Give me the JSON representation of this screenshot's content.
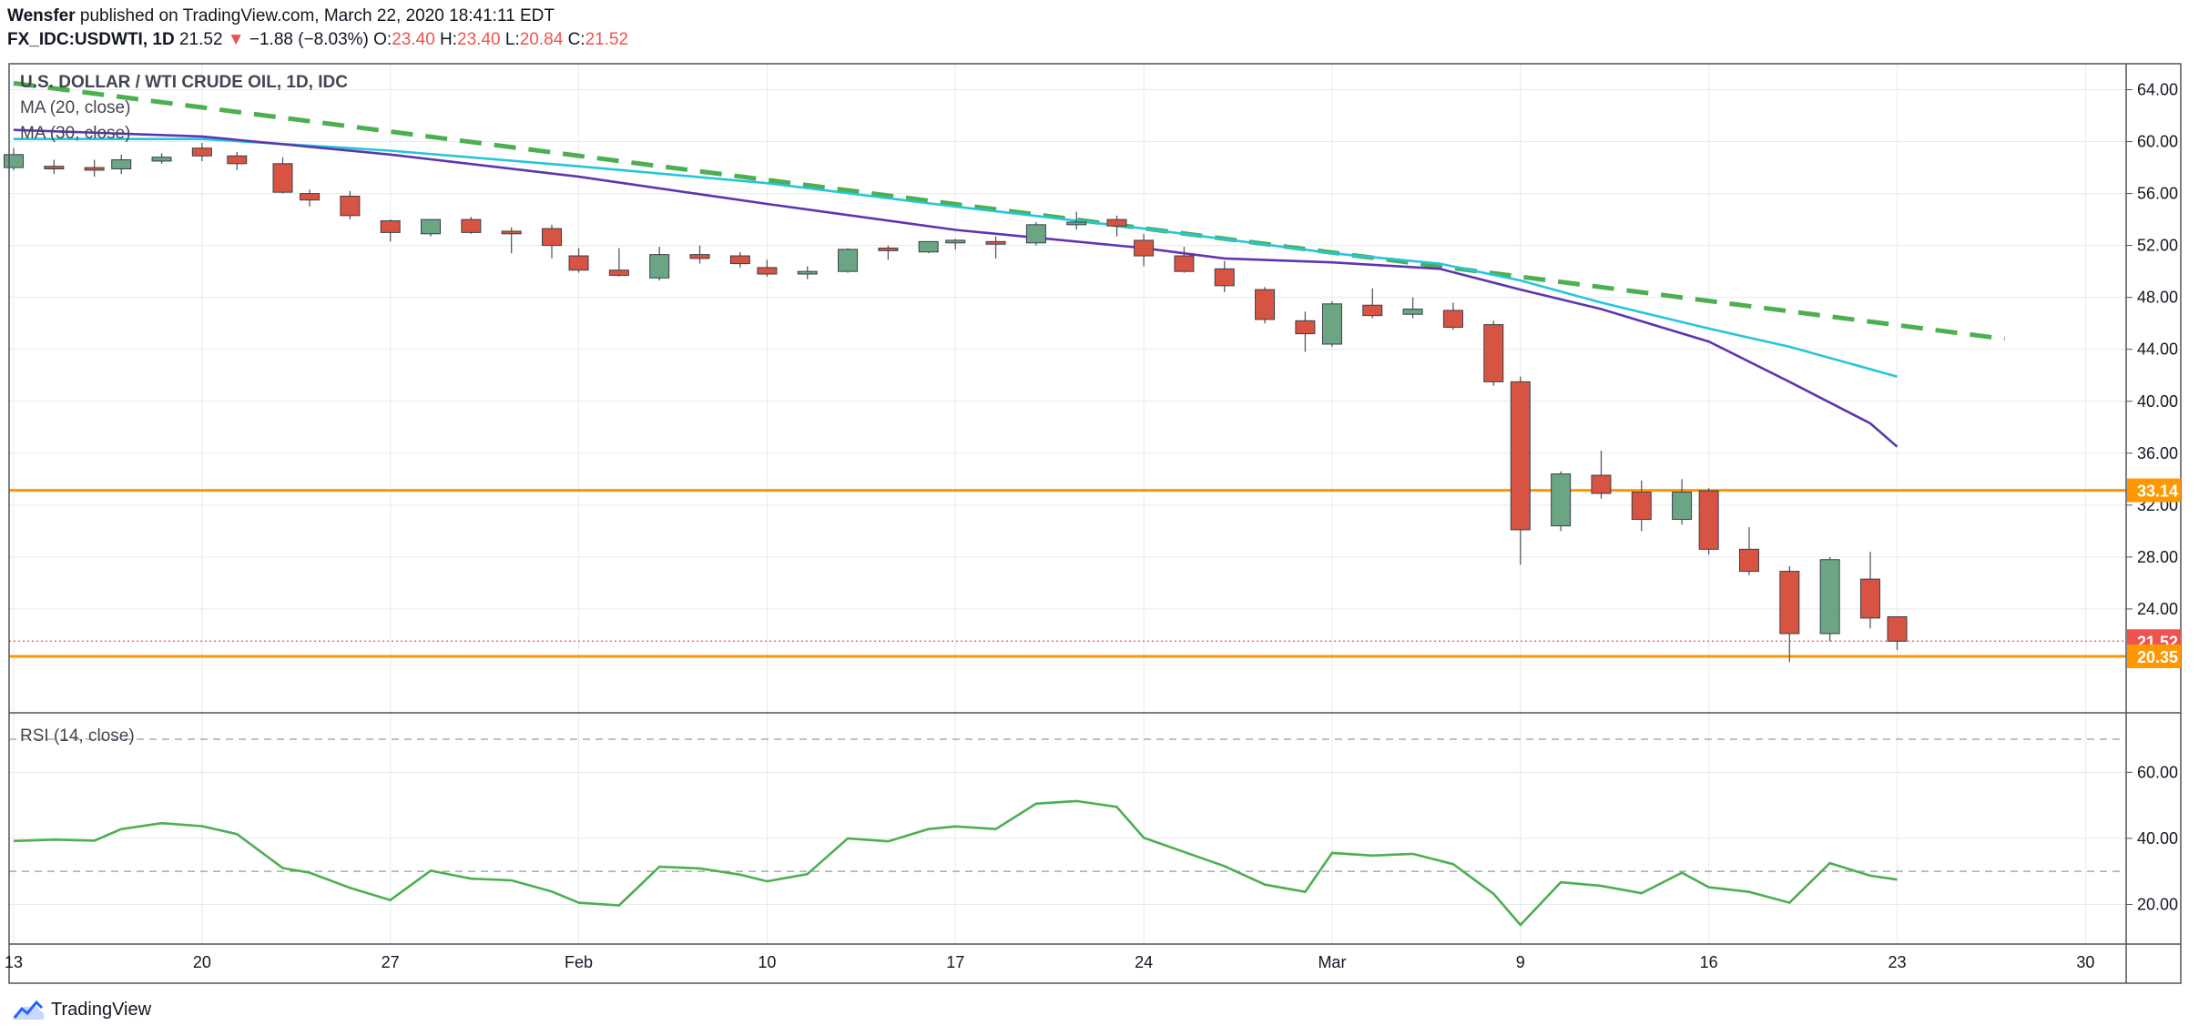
{
  "header": {
    "author": "Wensfer",
    "published": "published on TradingView.com, March 22, 2020 18:41:11 EDT",
    "symbol": "FX_IDC:USDWTI, 1D",
    "last": "21.52",
    "change": "−1.88 (−8.03%)",
    "o_label": "O:",
    "o_value": "23.40",
    "h_label": "H:",
    "h_value": "23.40",
    "l_label": "L:",
    "l_value": "20.84",
    "c_label": "C:",
    "c_value": "21.52"
  },
  "legend": {
    "title": "U.S. DOLLAR / WTI CRUDE OIL, 1D, IDC",
    "ma20": "MA (20, close)",
    "ma30": "MA (30, close)",
    "rsi": "RSI (14, close)"
  },
  "brand": {
    "name": "TradingView"
  },
  "colors": {
    "up": "#6ba583",
    "down": "#d75442",
    "ma20": "#5e35b1",
    "ma30": "#26c6da",
    "trend": "#4caf50",
    "rsi": "#4caf50",
    "level": "#ff9800",
    "last": "#ef5350"
  },
  "chart_data": [
    {
      "type": "candlestick",
      "title": "U.S. DOLLAR / WTI CRUDE OIL, 1D, IDC",
      "ylim": [
        16,
        66
      ],
      "yticks": [
        "64.00",
        "60.00",
        "56.00",
        "52.00",
        "48.00",
        "44.00",
        "40.00",
        "36.00",
        "32.00",
        "28.00",
        "24.00"
      ],
      "xticks": [
        {
          "day": 0,
          "label": "13"
        },
        {
          "day": 7,
          "label": "20"
        },
        {
          "day": 14,
          "label": "27"
        },
        {
          "day": 21,
          "label": "Feb"
        },
        {
          "day": 28,
          "label": "10"
        },
        {
          "day": 35,
          "label": "17"
        },
        {
          "day": 42,
          "label": "24"
        },
        {
          "day": 49,
          "label": "Mar"
        },
        {
          "day": 56,
          "label": "9"
        },
        {
          "day": 63,
          "label": "16"
        },
        {
          "day": 70,
          "label": "23"
        },
        {
          "day": 77,
          "label": "30"
        }
      ],
      "candles": [
        {
          "day": 0,
          "o": 58.0,
          "h": 59.5,
          "l": 57.8,
          "c": 59.0
        },
        {
          "day": 1.5,
          "o": 58.1,
          "h": 58.6,
          "l": 57.5,
          "c": 57.9
        },
        {
          "day": 3,
          "o": 58.0,
          "h": 58.6,
          "l": 57.3,
          "c": 57.8
        },
        {
          "day": 4,
          "o": 57.9,
          "h": 59.0,
          "l": 57.5,
          "c": 58.6
        },
        {
          "day": 5.5,
          "o": 58.5,
          "h": 59.1,
          "l": 58.3,
          "c": 58.8
        },
        {
          "day": 7,
          "o": 59.5,
          "h": 59.9,
          "l": 58.5,
          "c": 58.9
        },
        {
          "day": 8.3,
          "o": 58.9,
          "h": 59.2,
          "l": 57.8,
          "c": 58.3
        },
        {
          "day": 10,
          "o": 58.3,
          "h": 58.8,
          "l": 56.0,
          "c": 56.1
        },
        {
          "day": 11,
          "o": 56.0,
          "h": 56.3,
          "l": 55.0,
          "c": 55.5
        },
        {
          "day": 12.5,
          "o": 55.8,
          "h": 56.2,
          "l": 54.0,
          "c": 54.3
        },
        {
          "day": 14,
          "o": 53.9,
          "h": 54.0,
          "l": 52.3,
          "c": 53.0
        },
        {
          "day": 15.5,
          "o": 52.9,
          "h": 54.0,
          "l": 52.7,
          "c": 54.0
        },
        {
          "day": 17,
          "o": 54.0,
          "h": 54.2,
          "l": 52.9,
          "c": 53.0
        },
        {
          "day": 18.5,
          "o": 53.1,
          "h": 53.4,
          "l": 51.4,
          "c": 52.9
        },
        {
          "day": 20,
          "o": 53.3,
          "h": 53.6,
          "l": 51.0,
          "c": 52.0
        },
        {
          "day": 21,
          "o": 51.2,
          "h": 51.8,
          "l": 49.9,
          "c": 50.1
        },
        {
          "day": 22.5,
          "o": 50.1,
          "h": 51.8,
          "l": 49.6,
          "c": 49.7
        },
        {
          "day": 24,
          "o": 49.5,
          "h": 51.9,
          "l": 49.3,
          "c": 51.3
        },
        {
          "day": 25.5,
          "o": 51.3,
          "h": 52.0,
          "l": 50.6,
          "c": 51.0
        },
        {
          "day": 27,
          "o": 51.2,
          "h": 51.5,
          "l": 50.3,
          "c": 50.6
        },
        {
          "day": 28,
          "o": 50.3,
          "h": 50.9,
          "l": 49.6,
          "c": 49.8
        },
        {
          "day": 29.5,
          "o": 49.8,
          "h": 50.4,
          "l": 49.4,
          "c": 50.0
        },
        {
          "day": 31,
          "o": 50.0,
          "h": 51.8,
          "l": 49.9,
          "c": 51.7
        },
        {
          "day": 32.5,
          "o": 51.8,
          "h": 52.0,
          "l": 50.9,
          "c": 51.6
        },
        {
          "day": 34,
          "o": 51.5,
          "h": 52.3,
          "l": 51.4,
          "c": 52.3
        },
        {
          "day": 35,
          "o": 52.2,
          "h": 52.5,
          "l": 51.7,
          "c": 52.4
        },
        {
          "day": 36.5,
          "o": 52.3,
          "h": 52.7,
          "l": 51.0,
          "c": 52.1
        },
        {
          "day": 38,
          "o": 52.2,
          "h": 53.8,
          "l": 52.0,
          "c": 53.6
        },
        {
          "day": 39.5,
          "o": 53.6,
          "h": 54.6,
          "l": 53.2,
          "c": 53.8
        },
        {
          "day": 41,
          "o": 54.0,
          "h": 54.3,
          "l": 52.7,
          "c": 53.5
        },
        {
          "day": 42,
          "o": 52.4,
          "h": 52.9,
          "l": 50.4,
          "c": 51.2
        },
        {
          "day": 43.5,
          "o": 51.2,
          "h": 51.9,
          "l": 49.9,
          "c": 50.0
        },
        {
          "day": 45,
          "o": 50.2,
          "h": 50.8,
          "l": 48.4,
          "c": 48.9
        },
        {
          "day": 46.5,
          "o": 48.6,
          "h": 48.8,
          "l": 46.0,
          "c": 46.3
        },
        {
          "day": 48,
          "o": 46.2,
          "h": 46.9,
          "l": 43.8,
          "c": 45.2
        },
        {
          "day": 49,
          "o": 44.4,
          "h": 47.7,
          "l": 44.2,
          "c": 47.5
        },
        {
          "day": 50.5,
          "o": 47.4,
          "h": 48.7,
          "l": 46.4,
          "c": 46.6
        },
        {
          "day": 52,
          "o": 46.7,
          "h": 48.0,
          "l": 46.4,
          "c": 47.1
        },
        {
          "day": 53.5,
          "o": 47.0,
          "h": 47.6,
          "l": 45.5,
          "c": 45.7
        },
        {
          "day": 55,
          "o": 45.9,
          "h": 46.2,
          "l": 41.2,
          "c": 41.5
        },
        {
          "day": 56,
          "o": 41.5,
          "h": 41.9,
          "l": 27.4,
          "c": 30.1
        },
        {
          "day": 57.5,
          "o": 30.4,
          "h": 34.6,
          "l": 30.0,
          "c": 34.4
        },
        {
          "day": 59,
          "o": 34.3,
          "h": 36.2,
          "l": 32.5,
          "c": 32.9
        },
        {
          "day": 60.5,
          "o": 33.0,
          "h": 33.9,
          "l": 30.0,
          "c": 30.9
        },
        {
          "day": 62,
          "o": 30.9,
          "h": 34.0,
          "l": 30.5,
          "c": 33.0
        },
        {
          "day": 63,
          "o": 33.1,
          "h": 33.3,
          "l": 28.2,
          "c": 28.6
        },
        {
          "day": 64.5,
          "o": 28.6,
          "h": 30.3,
          "l": 26.6,
          "c": 26.9
        },
        {
          "day": 66,
          "o": 26.9,
          "h": 27.3,
          "l": 19.9,
          "c": 22.1
        },
        {
          "day": 67.5,
          "o": 22.1,
          "h": 28.0,
          "l": 21.5,
          "c": 27.8
        },
        {
          "day": 69,
          "o": 26.3,
          "h": 28.4,
          "l": 22.5,
          "c": 23.3
        },
        {
          "day": 70,
          "o": 23.4,
          "h": 23.4,
          "l": 20.84,
          "c": 21.52
        }
      ],
      "ma20": [
        [
          0,
          60.9
        ],
        [
          7,
          60.4
        ],
        [
          14,
          59.0
        ],
        [
          21,
          57.3
        ],
        [
          28,
          55.2
        ],
        [
          35,
          53.2
        ],
        [
          42,
          51.8
        ],
        [
          45,
          51.0
        ],
        [
          49,
          50.7
        ],
        [
          53,
          50.2
        ],
        [
          56,
          48.6
        ],
        [
          59,
          47.1
        ],
        [
          63,
          44.6
        ],
        [
          66,
          41.5
        ],
        [
          69,
          38.3
        ],
        [
          70,
          36.5
        ]
      ],
      "ma30": [
        [
          0,
          60.2
        ],
        [
          7,
          60.2
        ],
        [
          14,
          59.3
        ],
        [
          21,
          58.1
        ],
        [
          28,
          56.8
        ],
        [
          35,
          55.0
        ],
        [
          42,
          53.3
        ],
        [
          49,
          51.4
        ],
        [
          53,
          50.6
        ],
        [
          56,
          49.3
        ],
        [
          59,
          47.6
        ],
        [
          63,
          45.6
        ],
        [
          66,
          44.2
        ],
        [
          70,
          41.9
        ]
      ],
      "trendline": [
        [
          0,
          64.5
        ],
        [
          74,
          44.8
        ]
      ],
      "levels": [
        {
          "value": 33.14,
          "label": "33.14"
        },
        {
          "value": 20.35,
          "label": "20.35"
        }
      ],
      "last_price": {
        "value": 21.52,
        "label": "21.52"
      }
    },
    {
      "type": "line",
      "title": "RSI (14, close)",
      "ylim": [
        8,
        78
      ],
      "yticks": [
        "60.00",
        "40.00",
        "20.00"
      ],
      "bands": [
        70,
        30
      ],
      "values": [
        [
          0,
          39.2
        ],
        [
          1.5,
          39.6
        ],
        [
          3,
          39.3
        ],
        [
          4,
          42.8
        ],
        [
          5.5,
          44.6
        ],
        [
          7,
          43.7
        ],
        [
          8.3,
          41.3
        ],
        [
          10,
          31.0
        ],
        [
          11,
          29.6
        ],
        [
          12.5,
          25.0
        ],
        [
          14,
          21.3
        ],
        [
          15.5,
          30.2
        ],
        [
          17,
          27.8
        ],
        [
          18.5,
          27.3
        ],
        [
          20,
          23.9
        ],
        [
          21,
          20.5
        ],
        [
          22.5,
          19.7
        ],
        [
          24,
          31.4
        ],
        [
          25.5,
          30.9
        ],
        [
          27,
          29.0
        ],
        [
          28,
          27.0
        ],
        [
          29.5,
          29.2
        ],
        [
          31,
          40.0
        ],
        [
          32.5,
          39.1
        ],
        [
          34,
          42.8
        ],
        [
          35,
          43.6
        ],
        [
          36.5,
          42.8
        ],
        [
          38,
          50.5
        ],
        [
          39.5,
          51.3
        ],
        [
          41,
          49.5
        ],
        [
          42,
          40.2
        ],
        [
          43.5,
          35.9
        ],
        [
          45,
          31.6
        ],
        [
          46.5,
          26.0
        ],
        [
          48,
          23.8
        ],
        [
          49,
          35.6
        ],
        [
          50.5,
          34.8
        ],
        [
          52,
          35.3
        ],
        [
          53.5,
          32.2
        ],
        [
          55,
          23.2
        ],
        [
          56,
          13.8
        ],
        [
          57.5,
          26.7
        ],
        [
          59,
          25.6
        ],
        [
          60.5,
          23.4
        ],
        [
          62,
          29.6
        ],
        [
          63,
          25.2
        ],
        [
          64.5,
          23.8
        ],
        [
          66,
          20.5
        ],
        [
          67.5,
          32.5
        ],
        [
          69,
          28.7
        ],
        [
          70,
          27.5
        ]
      ]
    }
  ]
}
